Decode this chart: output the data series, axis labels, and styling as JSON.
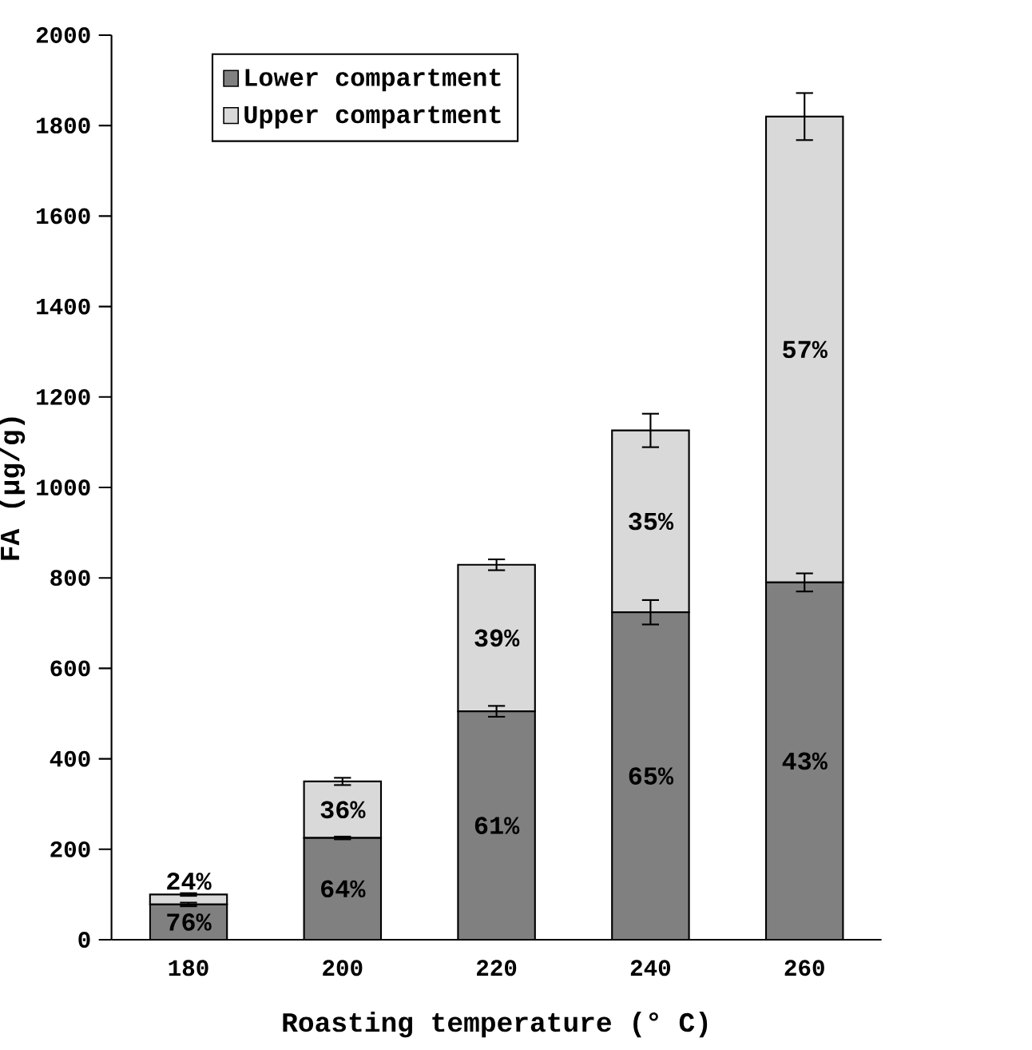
{
  "chart_data": {
    "type": "bar",
    "stacked": true,
    "xlabel": "Roasting temperature (° C)",
    "ylabel": "FA (µg/g)",
    "categories": [
      "180",
      "200",
      "220",
      "240",
      "260"
    ],
    "series": [
      {
        "name": "Lower compartment",
        "color": "#808080",
        "values": [
          78,
          225,
          505,
          724,
          790
        ],
        "errors": [
          4,
          3,
          12,
          27,
          20
        ]
      },
      {
        "name": "Upper compartment",
        "color": "#d9d9d9",
        "values": [
          22,
          125,
          324,
          402,
          1030
        ],
        "errors": [
          3,
          8,
          12,
          37,
          52
        ]
      }
    ],
    "annotations": [
      "76%",
      "24%",
      "64%",
      "36%",
      "61%",
      "39%",
      "65%",
      "35%",
      "43%",
      "57%"
    ],
    "ylim": [
      0,
      2000
    ],
    "yticks": [
      0,
      200,
      400,
      600,
      800,
      1000,
      1200,
      1400,
      1600,
      1800,
      2000
    ],
    "legend": "top left",
    "grid": false
  }
}
